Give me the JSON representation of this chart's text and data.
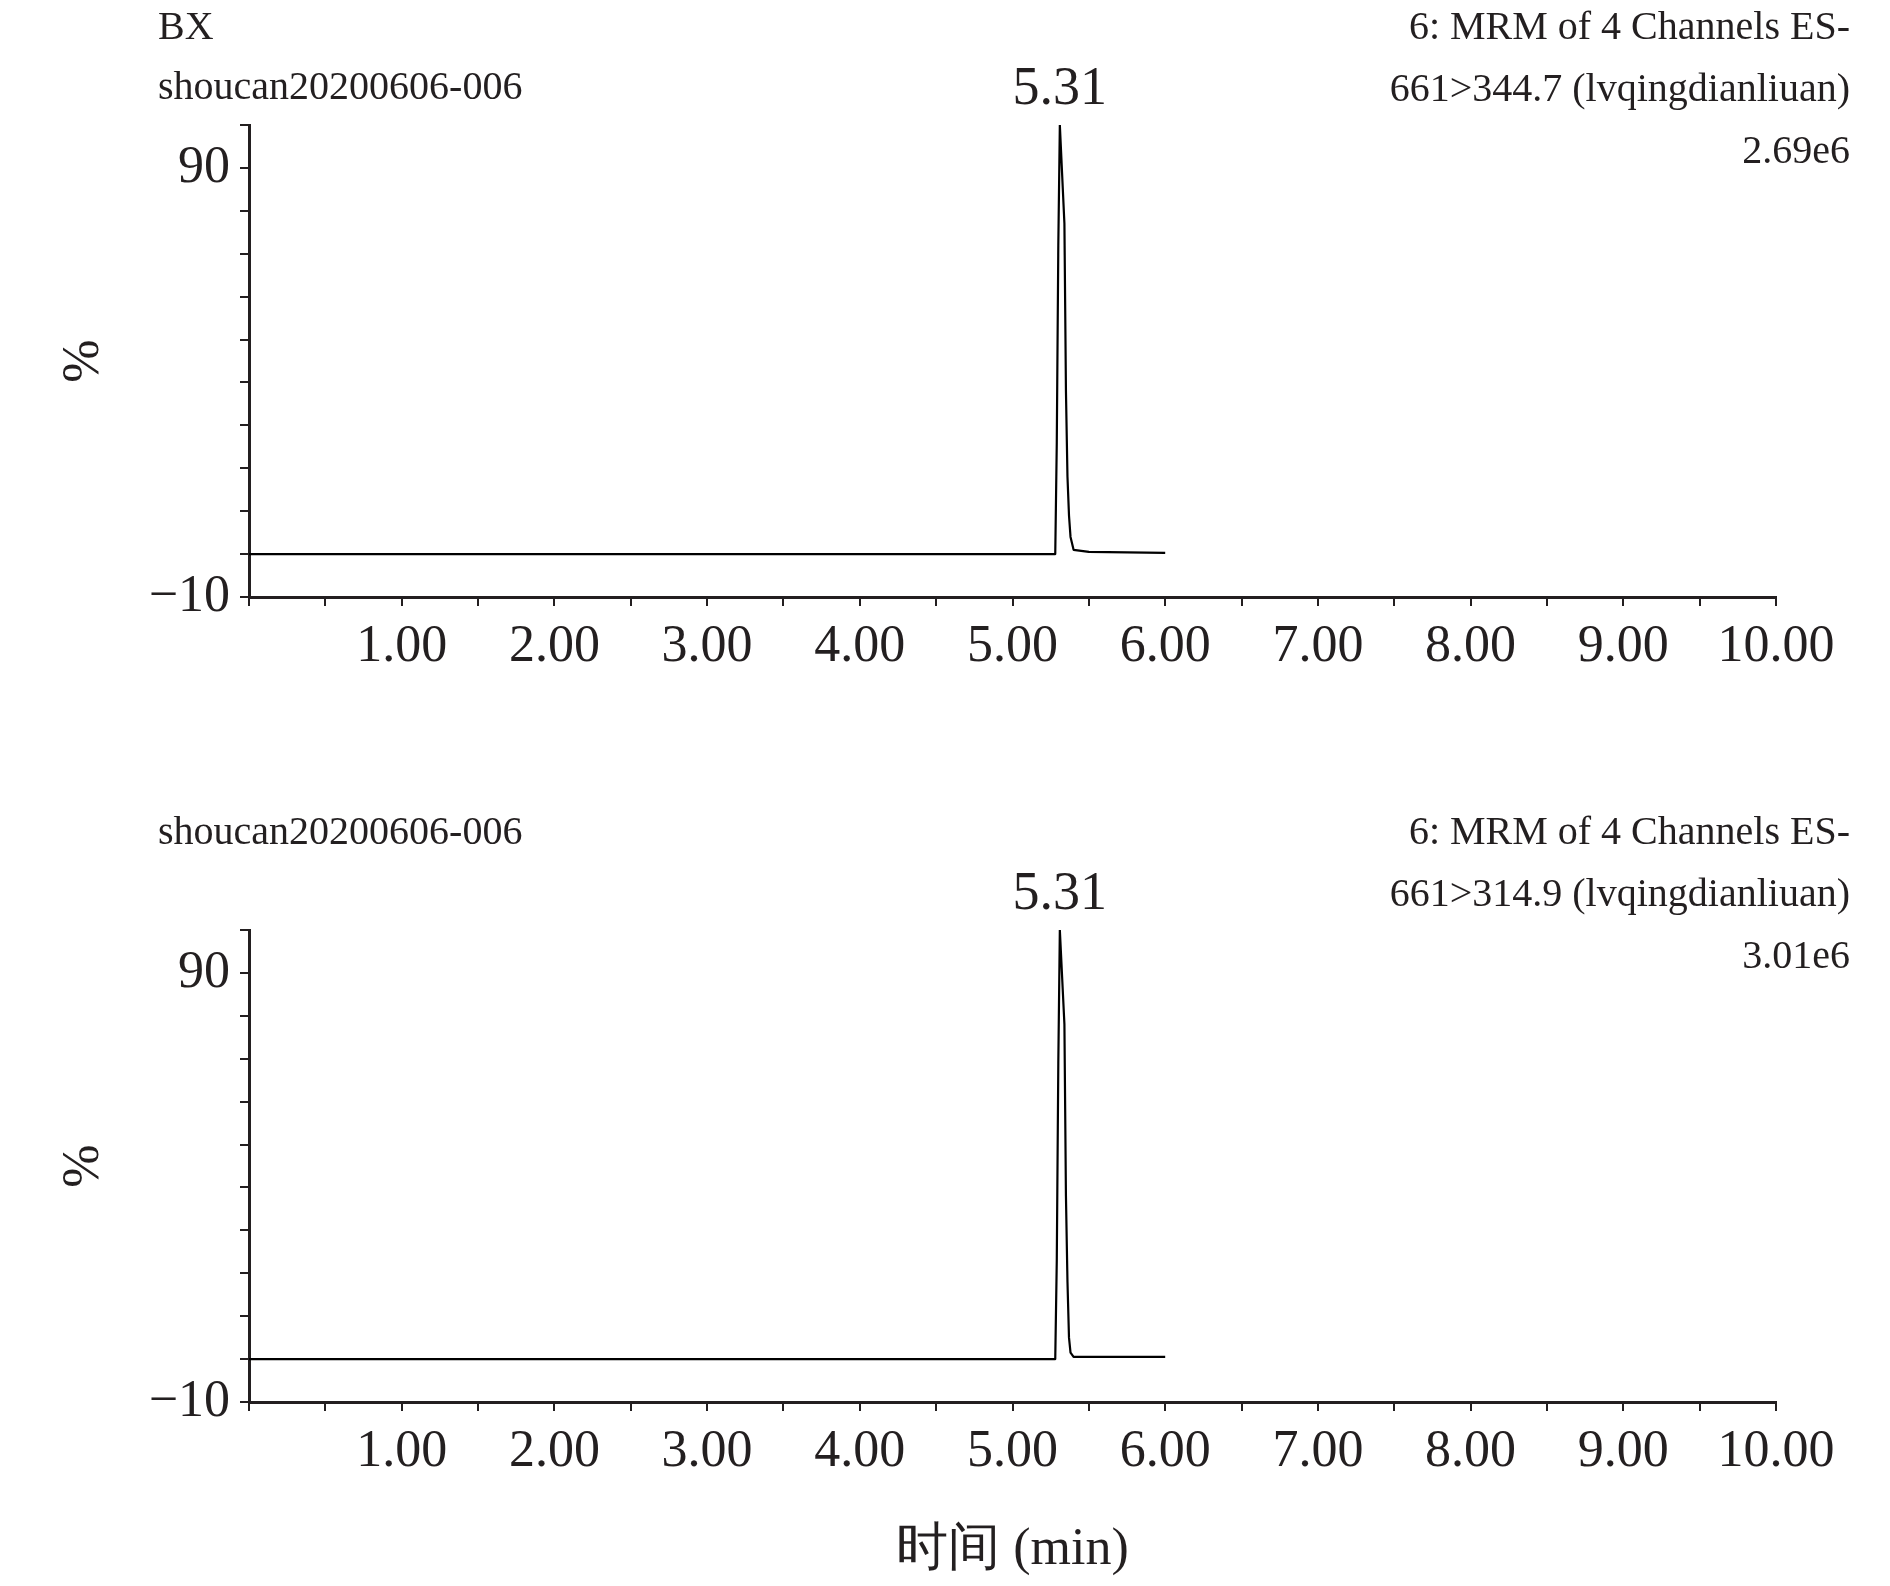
{
  "chart_data": [
    {
      "type": "line",
      "title": "BX",
      "subtitle": "shoucan20200606-006",
      "ylabel": "%",
      "annotations": [
        "6: MRM of 4 Channels ES-",
        "661>344.7 (lvqingdianliuan)",
        "2.69e6",
        {
          "text": "5.31",
          "x": 5.31,
          "y": 100
        }
      ],
      "series": [
        {
          "color": "#000000",
          "x": [
            0,
            5.28,
            5.29,
            5.3,
            5.31,
            5.34,
            5.35,
            5.36,
            5.37,
            5.38,
            5.4,
            5.5,
            6.0
          ],
          "values": [
            0,
            0,
            26,
            72,
            100,
            77,
            38,
            18,
            9,
            4,
            1,
            0.5,
            0.3
          ]
        }
      ],
      "xlim": [
        0,
        10
      ],
      "xticks": [
        {
          "value": 0,
          "label": null
        },
        {
          "value": 0.5,
          "label": null
        },
        {
          "value": 1,
          "label": "1.00"
        },
        {
          "value": 1.5,
          "label": null
        },
        {
          "value": 2,
          "label": "2.00"
        },
        {
          "value": 2.5,
          "label": null
        },
        {
          "value": 3,
          "label": "3.00"
        },
        {
          "value": 3.5,
          "label": null
        },
        {
          "value": 4,
          "label": "4.00"
        },
        {
          "value": 4.5,
          "label": null
        },
        {
          "value": 5,
          "label": "5.00"
        },
        {
          "value": 5.5,
          "label": null
        },
        {
          "value": 6,
          "label": "6.00"
        },
        {
          "value": 6.5,
          "label": null
        },
        {
          "value": 7,
          "label": "7.00"
        },
        {
          "value": 7.5,
          "label": null
        },
        {
          "value": 8,
          "label": "8.00"
        },
        {
          "value": 8.5,
          "label": null
        },
        {
          "value": 9,
          "label": "9.00"
        },
        {
          "value": 9.5,
          "label": null
        },
        {
          "value": 10,
          "label": "10.00"
        }
      ],
      "ylim": [
        -10,
        100
      ],
      "yticks": [
        {
          "value": -10,
          "label": "−10"
        },
        {
          "value": 0,
          "label": null
        },
        {
          "value": 10,
          "label": null
        },
        {
          "value": 20,
          "label": null
        },
        {
          "value": 30,
          "label": null
        },
        {
          "value": 40,
          "label": null
        },
        {
          "value": 50,
          "label": null
        },
        {
          "value": 60,
          "label": null
        },
        {
          "value": 70,
          "label": null
        },
        {
          "value": 80,
          "label": null
        },
        90,
        {
          "value": 100,
          "label": null
        }
      ],
      "grid": false,
      "legend": false,
      "marker": "none",
      "line_style": "solid"
    },
    {
      "type": "line",
      "subtitle": "shoucan20200606-006",
      "ylabel": "%",
      "xlabel": "时间 (min)",
      "annotations": [
        "6: MRM of 4 Channels ES-",
        "661>314.9 (lvqingdianliuan)",
        "3.01e6",
        {
          "text": "5.31",
          "x": 5.31,
          "y": 100
        }
      ],
      "series": [
        {
          "color": "#000000",
          "x": [
            0,
            5.28,
            5.29,
            5.3,
            5.31,
            5.34,
            5.35,
            5.36,
            5.37,
            5.38,
            5.4,
            5.5,
            6.0
          ],
          "values": [
            0,
            0,
            23,
            69,
            100,
            78,
            38,
            18,
            5,
            1.5,
            0.5,
            0.5,
            0.5
          ]
        }
      ],
      "xlim": [
        0,
        10
      ],
      "xticks": [
        {
          "value": 0,
          "label": null
        },
        {
          "value": 0.5,
          "label": null
        },
        {
          "value": 1,
          "label": "1.00"
        },
        {
          "value": 1.5,
          "label": null
        },
        {
          "value": 2,
          "label": "2.00"
        },
        {
          "value": 2.5,
          "label": null
        },
        {
          "value": 3,
          "label": "3.00"
        },
        {
          "value": 3.5,
          "label": null
        },
        {
          "value": 4,
          "label": "4.00"
        },
        {
          "value": 4.5,
          "label": null
        },
        {
          "value": 5,
          "label": "5.00"
        },
        {
          "value": 5.5,
          "label": null
        },
        {
          "value": 6,
          "label": "6.00"
        },
        {
          "value": 6.5,
          "label": null
        },
        {
          "value": 7,
          "label": "7.00"
        },
        {
          "value": 7.5,
          "label": null
        },
        {
          "value": 8,
          "label": "8.00"
        },
        {
          "value": 8.5,
          "label": null
        },
        {
          "value": 9,
          "label": "9.00"
        },
        {
          "value": 9.5,
          "label": null
        },
        {
          "value": 10,
          "label": "10.00"
        }
      ],
      "ylim": [
        -10,
        100
      ],
      "yticks": [
        {
          "value": -10,
          "label": "−10"
        },
        {
          "value": 0,
          "label": null
        },
        {
          "value": 10,
          "label": null
        },
        {
          "value": 20,
          "label": null
        },
        {
          "value": 30,
          "label": null
        },
        {
          "value": 40,
          "label": null
        },
        {
          "value": 50,
          "label": null
        },
        {
          "value": 60,
          "label": null
        },
        {
          "value": 70,
          "label": null
        },
        {
          "value": 80,
          "label": null
        },
        90,
        {
          "value": 100,
          "label": null
        }
      ],
      "grid": false,
      "legend": false,
      "marker": "none",
      "line_style": "solid"
    }
  ]
}
